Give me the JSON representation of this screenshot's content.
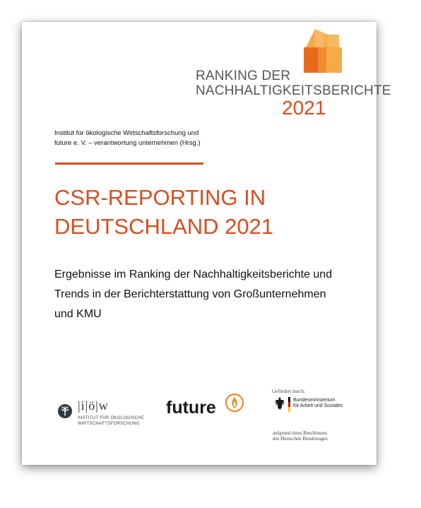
{
  "header": {
    "ranking_line1": "RANKING DER",
    "ranking_line2": "NACHHALTIGKEITSBERICHTE",
    "year": "2021"
  },
  "publisher": {
    "line1": "Institut für ökologische Wirtschaftsforschung und",
    "line2": "future e. V. – verantwortung unternehmen (Hrsg.)"
  },
  "title": {
    "line1": "CSR-REPORTING IN",
    "line2": "DEUTSCHLAND 2021"
  },
  "subtitle": {
    "line1": "Ergebnisse im Ranking der Nachhaltigkeitsberichte und",
    "line2": "Trends in der Berichterstattung von Großunternehmen",
    "line3": "und KMU"
  },
  "logos": {
    "ioew": {
      "letters": "|i|ö|w",
      "line1": "INSTITUT FÜR ÖKOLOGISCHE",
      "line2": "WIRTSCHAFTSFORSCHUNG"
    },
    "future": {
      "word": "future"
    },
    "sponsor": {
      "label": "Gefördert durch:",
      "ministry_line1": "Bundesministerium",
      "ministry_line2": "für Arbeit und Soziales",
      "resolution_line1": "aufgrund eines Beschlusses",
      "resolution_line2": "des Deutschen Bundestages"
    }
  },
  "colors": {
    "accent": "#d94d1f",
    "logo_orange_dark": "#e86a1e",
    "logo_orange_mid": "#f18a2d",
    "logo_orange_light": "#f5ab4a"
  }
}
